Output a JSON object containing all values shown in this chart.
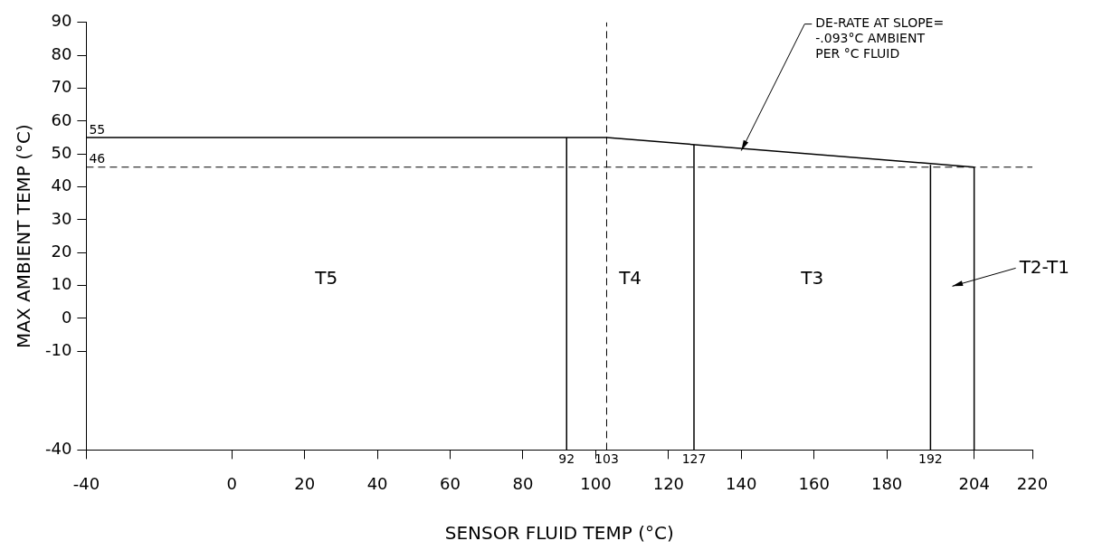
{
  "chart_data": {
    "type": "line",
    "xlabel": "SENSOR FLUID TEMP (°C)",
    "ylabel": "MAX AMBIENT TEMP (°C)",
    "xlim": [
      -40,
      220
    ],
    "xticks": [
      -40,
      0,
      20,
      40,
      60,
      80,
      100,
      120,
      140,
      160,
      180,
      204,
      220
    ],
    "ylim": [
      -40,
      90
    ],
    "yticks": [
      -40,
      -10,
      0,
      10,
      20,
      30,
      40,
      50,
      60,
      70,
      80,
      90
    ],
    "grid": false,
    "legend": false,
    "marker": "none",
    "line_style": "solid",
    "series": [
      {
        "color": "#000000",
        "x": [
          -40,
          103,
          204
        ],
        "values": [
          55,
          55,
          46
        ]
      },
      {
        "color": "#000000",
        "x": [
          92,
          92
        ],
        "values": [
          -40,
          55
        ]
      },
      {
        "color": "#000000",
        "x": [
          127,
          127
        ],
        "values": [
          -40,
          52.8
        ]
      },
      {
        "color": "#000000",
        "x": [
          192,
          192
        ],
        "values": [
          -40,
          46.7
        ]
      },
      {
        "color": "#000000",
        "x": [
          204,
          204
        ],
        "values": [
          -40,
          46
        ]
      }
    ],
    "ref_lines": [
      {
        "axis": "y",
        "value": 46,
        "label": "46",
        "color": "#000000",
        "line_style": "dashed"
      },
      {
        "axis": "x",
        "value": 103,
        "color": "#000000",
        "line_style": "dashed"
      }
    ],
    "annotations": [
      "T5",
      "T4",
      "T3",
      "T2-T1",
      {
        "text": "DE-RATE AT SLOPE=\n-.093°C AMBIENT\nPER °C FLUID",
        "x": 140,
        "y": 51
      },
      {
        "text": "55",
        "x": -40,
        "y": 55
      },
      {
        "text": "92",
        "x": 92,
        "y": -40
      },
      {
        "text": "103",
        "x": 103,
        "y": -40
      },
      {
        "text": "127",
        "x": 127,
        "y": -40
      },
      {
        "text": "192",
        "x": 192,
        "y": -40
      }
    ]
  }
}
